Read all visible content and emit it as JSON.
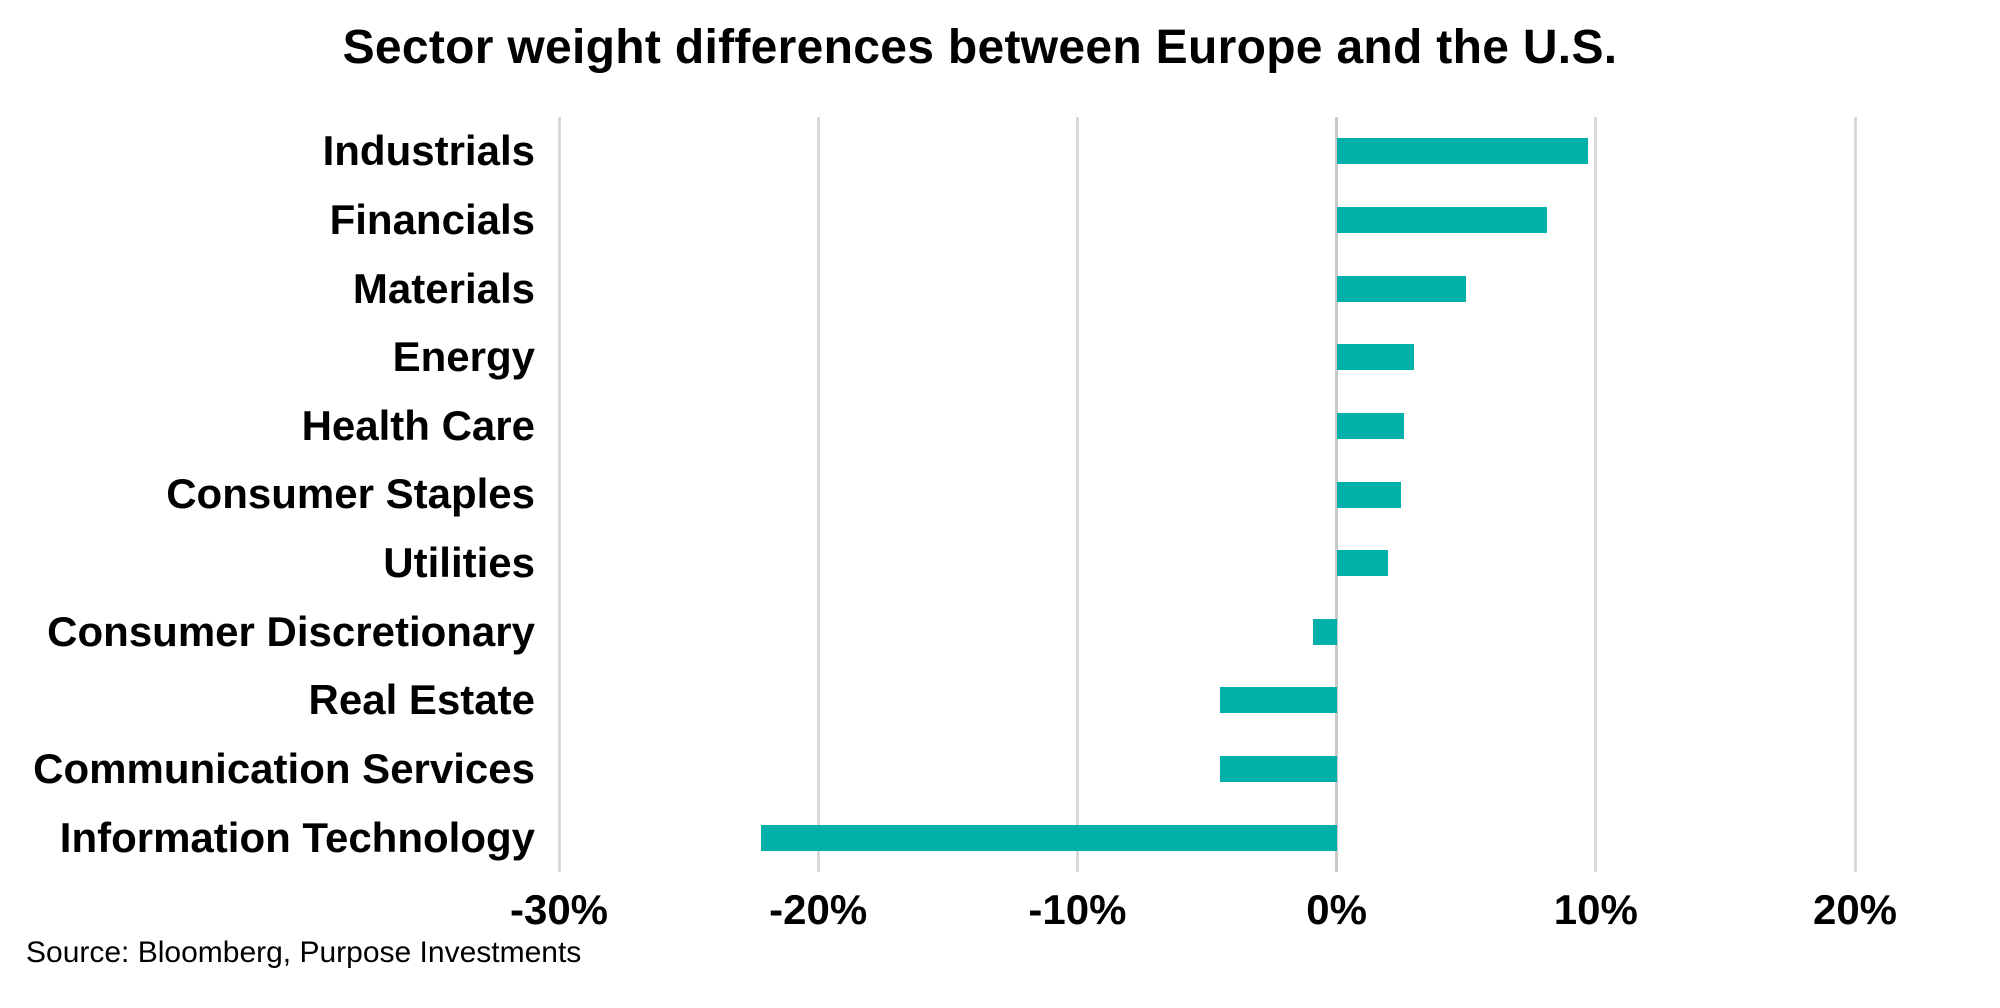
{
  "title": "Sector weight differences between Europe and the U.S.",
  "source": "Source: Bloomberg, Purpose Investments",
  "colors": {
    "bar": "#00B0A9",
    "gridline": "#D9D9D9",
    "zero_line": "#C9C9C9",
    "text": "#000000",
    "background": "#FFFFFF"
  },
  "chart_data": {
    "type": "bar",
    "orientation": "horizontal",
    "title": "Sector weight differences between Europe and the U.S.",
    "categories": [
      "Industrials",
      "Financials",
      "Materials",
      "Energy",
      "Health Care",
      "Consumer Staples",
      "Utilities",
      "Consumer Discretionary",
      "Real Estate",
      "Communication Services",
      "Information Technology"
    ],
    "values": [
      9.7,
      8.1,
      5.0,
      3.0,
      2.6,
      2.5,
      2.0,
      -0.9,
      -4.5,
      -4.5,
      -22.2
    ],
    "value_unit": "%",
    "x_ticks": [
      "-30%",
      "-20%",
      "-10%",
      "0%",
      "10%",
      "20%"
    ],
    "x_tick_values": [
      -30,
      -20,
      -10,
      0,
      10,
      20
    ],
    "xlim": [
      -30,
      20
    ],
    "grid": "vertical",
    "legend": "none",
    "data_labels": "none"
  }
}
